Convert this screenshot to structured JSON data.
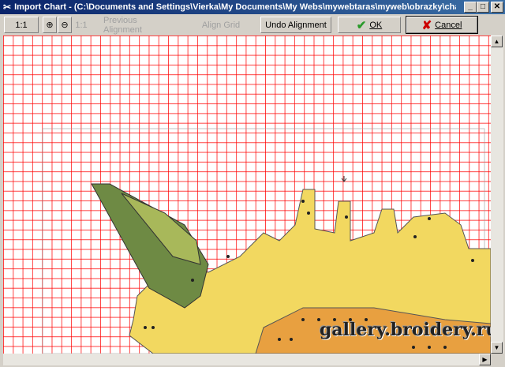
{
  "window": {
    "title": "Import Chart - (C:\\Documents and Settings\\Vierka\\My Documents\\My Webs\\mywebtaras\\myweb\\obrazky\\charts\\chart1.b...",
    "icon": "app-icon"
  },
  "toolbar": {
    "zoom_label": "1:1",
    "zoom_in_icon": "zoom-in-icon",
    "zoom_out_icon": "zoom-out-icon",
    "actual_size_label": "1:1",
    "previous_alignment": "Previous Alignment",
    "align_grid": "Align Grid",
    "undo_alignment": "Undo Alignment",
    "ok": "OK",
    "cancel": "Cancel"
  },
  "colors": {
    "grid": "#ff0000",
    "light_fill": "#f5d65a",
    "dark_fill": "#5c7a3a",
    "ok_check": "#2a9a2a",
    "cancel_x": "#cc0000"
  },
  "watermark": "gallery.broidery.ru"
}
